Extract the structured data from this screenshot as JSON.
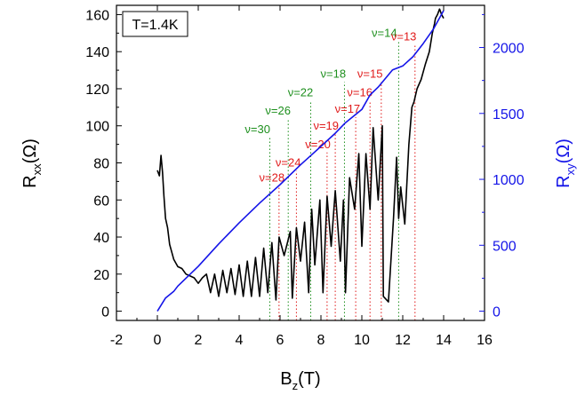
{
  "chart_data": {
    "type": "line",
    "annotation_box": "T=1.4K",
    "xlabel": {
      "main": "B",
      "sub": "z",
      "unit": "(T)"
    },
    "ylabel_left": {
      "main": "R",
      "sub": "xx",
      "unit": "(Ω)"
    },
    "ylabel_right": {
      "main": "R",
      "sub": "xy",
      "unit": "(Ω)"
    },
    "xlim": [
      -2,
      16
    ],
    "ylim_left": [
      -5,
      165
    ],
    "ylim_right": [
      -70.3,
      2320
    ],
    "x_ticks": [
      "-2",
      "0",
      "2",
      "4",
      "6",
      "8",
      "10",
      "12",
      "14",
      "16"
    ],
    "y_left_ticks": [
      "0",
      "20",
      "40",
      "60",
      "80",
      "100",
      "120",
      "140",
      "160"
    ],
    "y_right_ticks": [
      "0",
      "500",
      "1000",
      "1500",
      "2000"
    ],
    "colors": {
      "rxx": "#000000",
      "rxy": "#1515e8",
      "green": "#1d8f1d",
      "red": "#e01a1a",
      "axis_right": "#1515e8"
    },
    "series": [
      {
        "axis": "left",
        "color": "#000000",
        "x": [
          0,
          0.1,
          0.18,
          0.25,
          0.32,
          0.4,
          0.5,
          0.6,
          0.7,
          0.8,
          0.9,
          1.0,
          1.2,
          1.4,
          1.6,
          1.8,
          2.0,
          2.2,
          2.4,
          2.6,
          2.8,
          3.0,
          3.2,
          3.4,
          3.6,
          3.8,
          4.0,
          4.2,
          4.4,
          4.6,
          4.8,
          5.0,
          5.2,
          5.4,
          5.6,
          5.8,
          5.95,
          6.2,
          6.5,
          6.6,
          6.8,
          7.0,
          7.2,
          7.4,
          7.55,
          7.7,
          7.95,
          8.1,
          8.3,
          8.5,
          8.7,
          8.95,
          9.1,
          9.2,
          9.4,
          9.65,
          9.85,
          10.0,
          10.2,
          10.4,
          10.55,
          10.8,
          11.0,
          11.05,
          11.3,
          11.55,
          11.7,
          11.8,
          11.9,
          12.1,
          12.3,
          12.45,
          12.55,
          12.7,
          12.9,
          13.1,
          13.3,
          13.45,
          13.55,
          13.6,
          13.7,
          13.8,
          13.9,
          14.0
        ],
        "y": [
          76,
          73,
          84,
          75,
          62,
          50,
          45,
          36,
          32,
          28,
          26,
          24,
          23,
          20,
          19,
          18,
          15,
          18,
          20,
          10,
          20,
          8,
          22,
          10,
          23,
          9,
          25,
          8,
          27,
          8,
          29,
          8,
          34,
          10,
          37,
          6,
          40,
          30,
          43,
          7,
          45,
          27,
          48,
          10,
          55,
          25,
          60,
          10,
          62,
          35,
          65,
          27,
          60,
          10,
          72,
          55,
          85,
          35,
          85,
          55,
          99,
          60,
          100,
          8,
          5,
          50,
          83,
          50,
          67,
          47,
          90,
          110,
          113,
          120,
          125,
          133,
          140,
          150,
          155,
          158,
          160,
          163,
          160,
          158
        ]
      },
      {
        "axis": "right",
        "color": "#1515e8",
        "x": [
          0,
          0.4,
          0.8,
          1.0,
          2.0,
          3.0,
          4.0,
          5.0,
          6.0,
          7.0,
          7.5,
          8.0,
          8.7,
          9.2,
          10.0,
          10.4,
          10.8,
          11.5,
          12.0,
          12.5,
          13.0,
          13.5,
          14.0
        ],
        "y": [
          0,
          100,
          150,
          190,
          340,
          510,
          670,
          820,
          960,
          1110,
          1180,
          1250,
          1350,
          1430,
          1530,
          1640,
          1700,
          1830,
          1860,
          1930,
          2030,
          2140,
          2280
        ]
      }
    ],
    "markers": [
      {
        "label": "ν=30",
        "x": 5.5,
        "color": "green",
        "text_x": 4.9,
        "text_y": 96
      },
      {
        "label": "ν=26",
        "x": 6.4,
        "color": "green",
        "text_x": 5.9,
        "text_y": 106
      },
      {
        "label": "ν=22",
        "x": 7.5,
        "color": "green",
        "text_x": 7.0,
        "text_y": 116
      },
      {
        "label": "ν=18",
        "x": 9.15,
        "color": "green",
        "text_x": 8.6,
        "text_y": 126
      },
      {
        "label": "ν=14",
        "x": 11.8,
        "color": "green",
        "text_x": 11.1,
        "text_y": 148
      },
      {
        "label": "ν=28",
        "x": 5.95,
        "color": "red",
        "text_x": 5.6,
        "text_y": 70
      },
      {
        "label": "ν=24",
        "x": 6.8,
        "color": "red",
        "text_x": 6.4,
        "text_y": 78
      },
      {
        "label": "ν=20",
        "x": 8.3,
        "color": "red",
        "text_x": 7.85,
        "text_y": 88
      },
      {
        "label": "ν=19",
        "x": 8.7,
        "color": "red",
        "text_x": 8.25,
        "text_y": 98
      },
      {
        "label": "ν=17",
        "x": 9.7,
        "color": "red",
        "text_x": 9.3,
        "text_y": 107
      },
      {
        "label": "ν=16",
        "x": 10.4,
        "color": "red",
        "text_x": 9.9,
        "text_y": 116
      },
      {
        "label": "ν=15",
        "x": 10.95,
        "color": "red",
        "text_x": 10.4,
        "text_y": 126
      },
      {
        "label": "ν=13",
        "x": 12.6,
        "color": "red",
        "text_x": 12.05,
        "text_y": 146
      }
    ]
  }
}
